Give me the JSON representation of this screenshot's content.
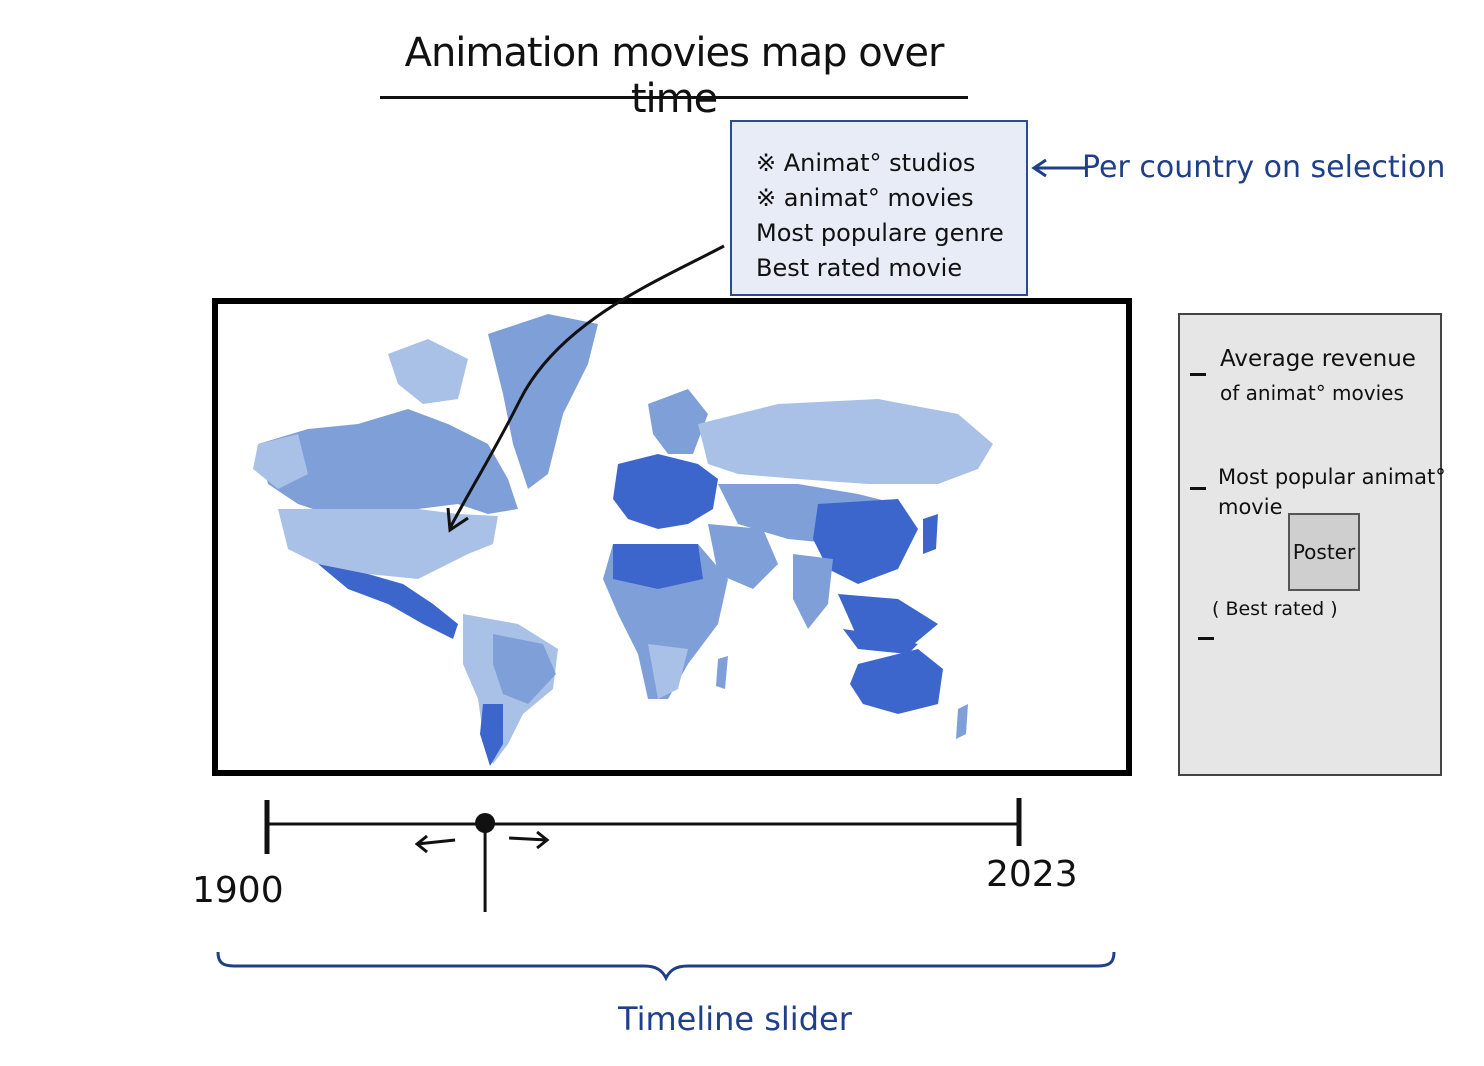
{
  "title": "Animation movies map over time",
  "tooltip": {
    "lines": [
      "※ Animat° studios",
      "※ animat° movies",
      "Most populare genre",
      "Best rated movie"
    ]
  },
  "tooltip_annotation": "Per country on selection",
  "side_panel": {
    "item1_line1": "Average revenue",
    "item1_line2": "of animat° movies",
    "item2_line1": "Most popular animat°",
    "item2_line2": "movie",
    "poster_label": "Poster",
    "poster_caption": "( Best rated )"
  },
  "timeline": {
    "start_year": "1900",
    "end_year": "2023",
    "label": "Timeline slider",
    "handle_position": 0.29
  },
  "colors": {
    "map_light": "#a9c1e6",
    "map_mid": "#7f9fd8",
    "map_dark": "#3d66cc",
    "annotation_blue": "#1f3f8a"
  }
}
